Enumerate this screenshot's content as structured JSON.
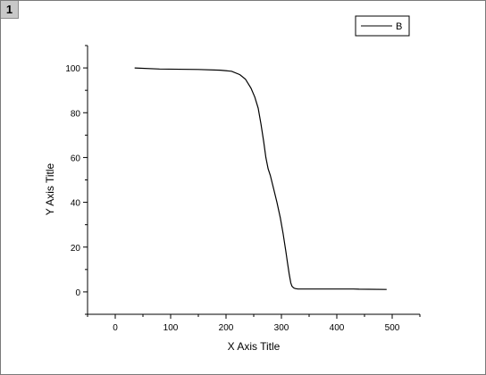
{
  "window": {
    "layer_label": "1"
  },
  "chart_data": {
    "type": "line",
    "xlabel": "X Axis Title",
    "ylabel": "Y Axis Title",
    "xlim": [
      -50,
      550
    ],
    "ylim": [
      -10,
      110
    ],
    "xticks": [
      0,
      100,
      200,
      300,
      400,
      500
    ],
    "yticks": [
      0,
      20,
      40,
      60,
      80,
      100
    ],
    "legend_position": "top-right",
    "grid": false,
    "series": [
      {
        "name": "B",
        "color": "#000000",
        "x": [
          35,
          80,
          150,
          190,
          210,
          225,
          235,
          245,
          252,
          258,
          263,
          268,
          272,
          276,
          280,
          286,
          292,
          298,
          303,
          308,
          311,
          314,
          317,
          319,
          322,
          325,
          330,
          340,
          370,
          400,
          430,
          440,
          490
        ],
        "y": [
          100,
          99.5,
          99.3,
          99,
          98.5,
          97,
          95,
          91,
          87,
          82,
          75,
          67,
          60,
          55,
          52,
          46,
          40,
          33,
          26,
          18,
          13,
          8,
          4,
          2.5,
          1.8,
          1.5,
          1.3,
          1.3,
          1.3,
          1.3,
          1.3,
          1.2,
          1.1
        ]
      }
    ]
  }
}
